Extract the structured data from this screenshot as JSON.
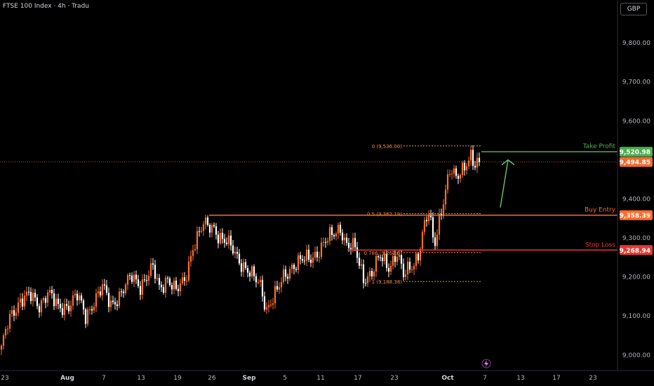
{
  "header": {
    "symbol_title": "FTSE 100 Index · 4h · Tradu",
    "currency": "GBP"
  },
  "chart_data": {
    "type": "candlestick",
    "ylim": [
      8960,
      9910
    ],
    "y_ticks": [
      "9,000.00",
      "9,100.00",
      "9,200.00",
      "9,300.00",
      "9,400.00",
      "9,500.00",
      "9,600.00",
      "9,700.00",
      "9,800.00"
    ],
    "y_tick_values": [
      9000,
      9100,
      9200,
      9300,
      9400,
      9500,
      9600,
      9700,
      9800
    ],
    "x_ticks": [
      "23",
      "Aug",
      "7",
      "13",
      "19",
      "26",
      "Sep",
      "5",
      "11",
      "17",
      "23",
      "Oct",
      "7",
      "13",
      "17",
      "23"
    ],
    "x_tick_bold": [
      "Aug",
      "Sep",
      "Oct"
    ],
    "price_anchors": [
      [
        0,
        9010
      ],
      [
        3,
        9080
      ],
      [
        5,
        9110
      ],
      [
        9,
        9140
      ],
      [
        14,
        9150
      ],
      [
        18,
        9130
      ],
      [
        22,
        9160
      ],
      [
        27,
        9120
      ],
      [
        32,
        9130
      ],
      [
        36,
        9150
      ],
      [
        40,
        9100
      ],
      [
        44,
        9140
      ],
      [
        48,
        9170
      ],
      [
        52,
        9130
      ],
      [
        57,
        9160
      ],
      [
        62,
        9200
      ],
      [
        66,
        9180
      ],
      [
        72,
        9220
      ],
      [
        75,
        9170
      ],
      [
        79,
        9200
      ],
      [
        83,
        9160
      ],
      [
        87,
        9190
      ],
      [
        91,
        9280
      ],
      [
        96,
        9330
      ],
      [
        101,
        9330
      ],
      [
        104,
        9300
      ],
      [
        110,
        9270
      ],
      [
        115,
        9230
      ],
      [
        119,
        9200
      ],
      [
        123,
        9180
      ],
      [
        126,
        9120
      ],
      [
        131,
        9160
      ],
      [
        134,
        9200
      ],
      [
        138,
        9230
      ],
      [
        143,
        9240
      ],
      [
        147,
        9250
      ],
      [
        151,
        9270
      ],
      [
        156,
        9300
      ],
      [
        161,
        9330
      ],
      [
        164,
        9280
      ],
      [
        168,
        9270
      ],
      [
        172,
        9200
      ],
      [
        176,
        9210
      ],
      [
        180,
        9250
      ],
      [
        184,
        9230
      ],
      [
        188,
        9260
      ],
      [
        191,
        9200
      ],
      [
        194,
        9225
      ],
      [
        196,
        9240
      ],
      [
        198,
        9260
      ],
      [
        201,
        9330
      ],
      [
        203,
        9360
      ],
      [
        205,
        9300
      ],
      [
        206,
        9290
      ],
      [
        208,
        9350
      ],
      [
        210,
        9400
      ],
      [
        213,
        9470
      ],
      [
        216,
        9450
      ],
      [
        219,
        9480
      ],
      [
        221,
        9500
      ],
      [
        223,
        9510
      ],
      [
        225,
        9480
      ],
      [
        227,
        9495
      ]
    ],
    "candle_count": 228,
    "last_price": 9494.85,
    "last_price_label": "9,494.85",
    "levels": [
      {
        "name": "take-profit",
        "label": "Take Profit",
        "price": 9520.98,
        "price_label": "9,520.98",
        "color": "#4caf50"
      },
      {
        "name": "buy-entry",
        "label": "Buy Entry",
        "price": 9358.39,
        "price_label": "9,358.39",
        "color": "#ff6d2d"
      },
      {
        "name": "stop-loss",
        "label": "Stop Loss",
        "price": 9268.94,
        "price_label": "9,268.94",
        "color": "#e53935"
      }
    ],
    "fib_levels": [
      {
        "label": "0 (9,536.00)",
        "price": 9536.0
      },
      {
        "label": "0.5 (9,362.19)",
        "price": 9362.19
      },
      {
        "label": "0.786 (9,262.6)",
        "price": 9262.6
      },
      {
        "label": "1 (9,188.38)",
        "price": 9188.38
      }
    ],
    "colors": {
      "up": "#ff6d2d",
      "down": "#ffffff",
      "fib": "#ff8a3d",
      "arrow": "#66bb6a",
      "grid_label": "#b2b5be",
      "last_price": "#f26a2e"
    }
  }
}
